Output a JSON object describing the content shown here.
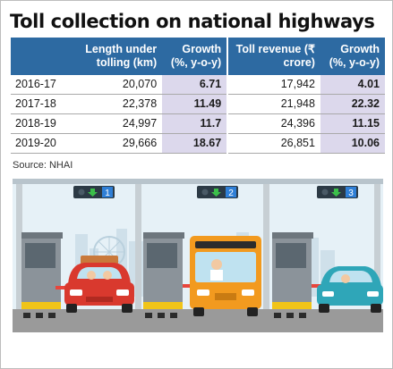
{
  "title": "Toll collection on national highways",
  "table": {
    "headers": [
      "",
      "Length under tolling (km)",
      "Growth (%, y-o-y)",
      "Toll revenue (₹ crore)",
      "Growth (%, y-o-y)"
    ],
    "rows": [
      {
        "year": "2016-17",
        "length": "20,070",
        "length_growth": "6.71",
        "revenue": "17,942",
        "revenue_growth": "4.01"
      },
      {
        "year": "2017-18",
        "length": "22,378",
        "length_growth": "11.49",
        "revenue": "21,948",
        "revenue_growth": "22.32"
      },
      {
        "year": "2018-19",
        "length": "24,997",
        "length_growth": "11.7",
        "revenue": "24,396",
        "revenue_growth": "11.15"
      },
      {
        "year": "2019-20",
        "length": "29,666",
        "length_growth": "18.67",
        "revenue": "26,851",
        "revenue_growth": "10.06"
      }
    ]
  },
  "source": "Source: NHAI",
  "illustration": {
    "lanes": [
      "1",
      "2",
      "3"
    ],
    "colors": {
      "header": "#2d6aa2",
      "growth_cell": "#dcd8ec",
      "car_red": "#d9392e",
      "bus_orange": "#f29a1f",
      "car_teal": "#2fa6b8",
      "sky": "#e6f1f7",
      "road": "#9a9a9a"
    }
  }
}
